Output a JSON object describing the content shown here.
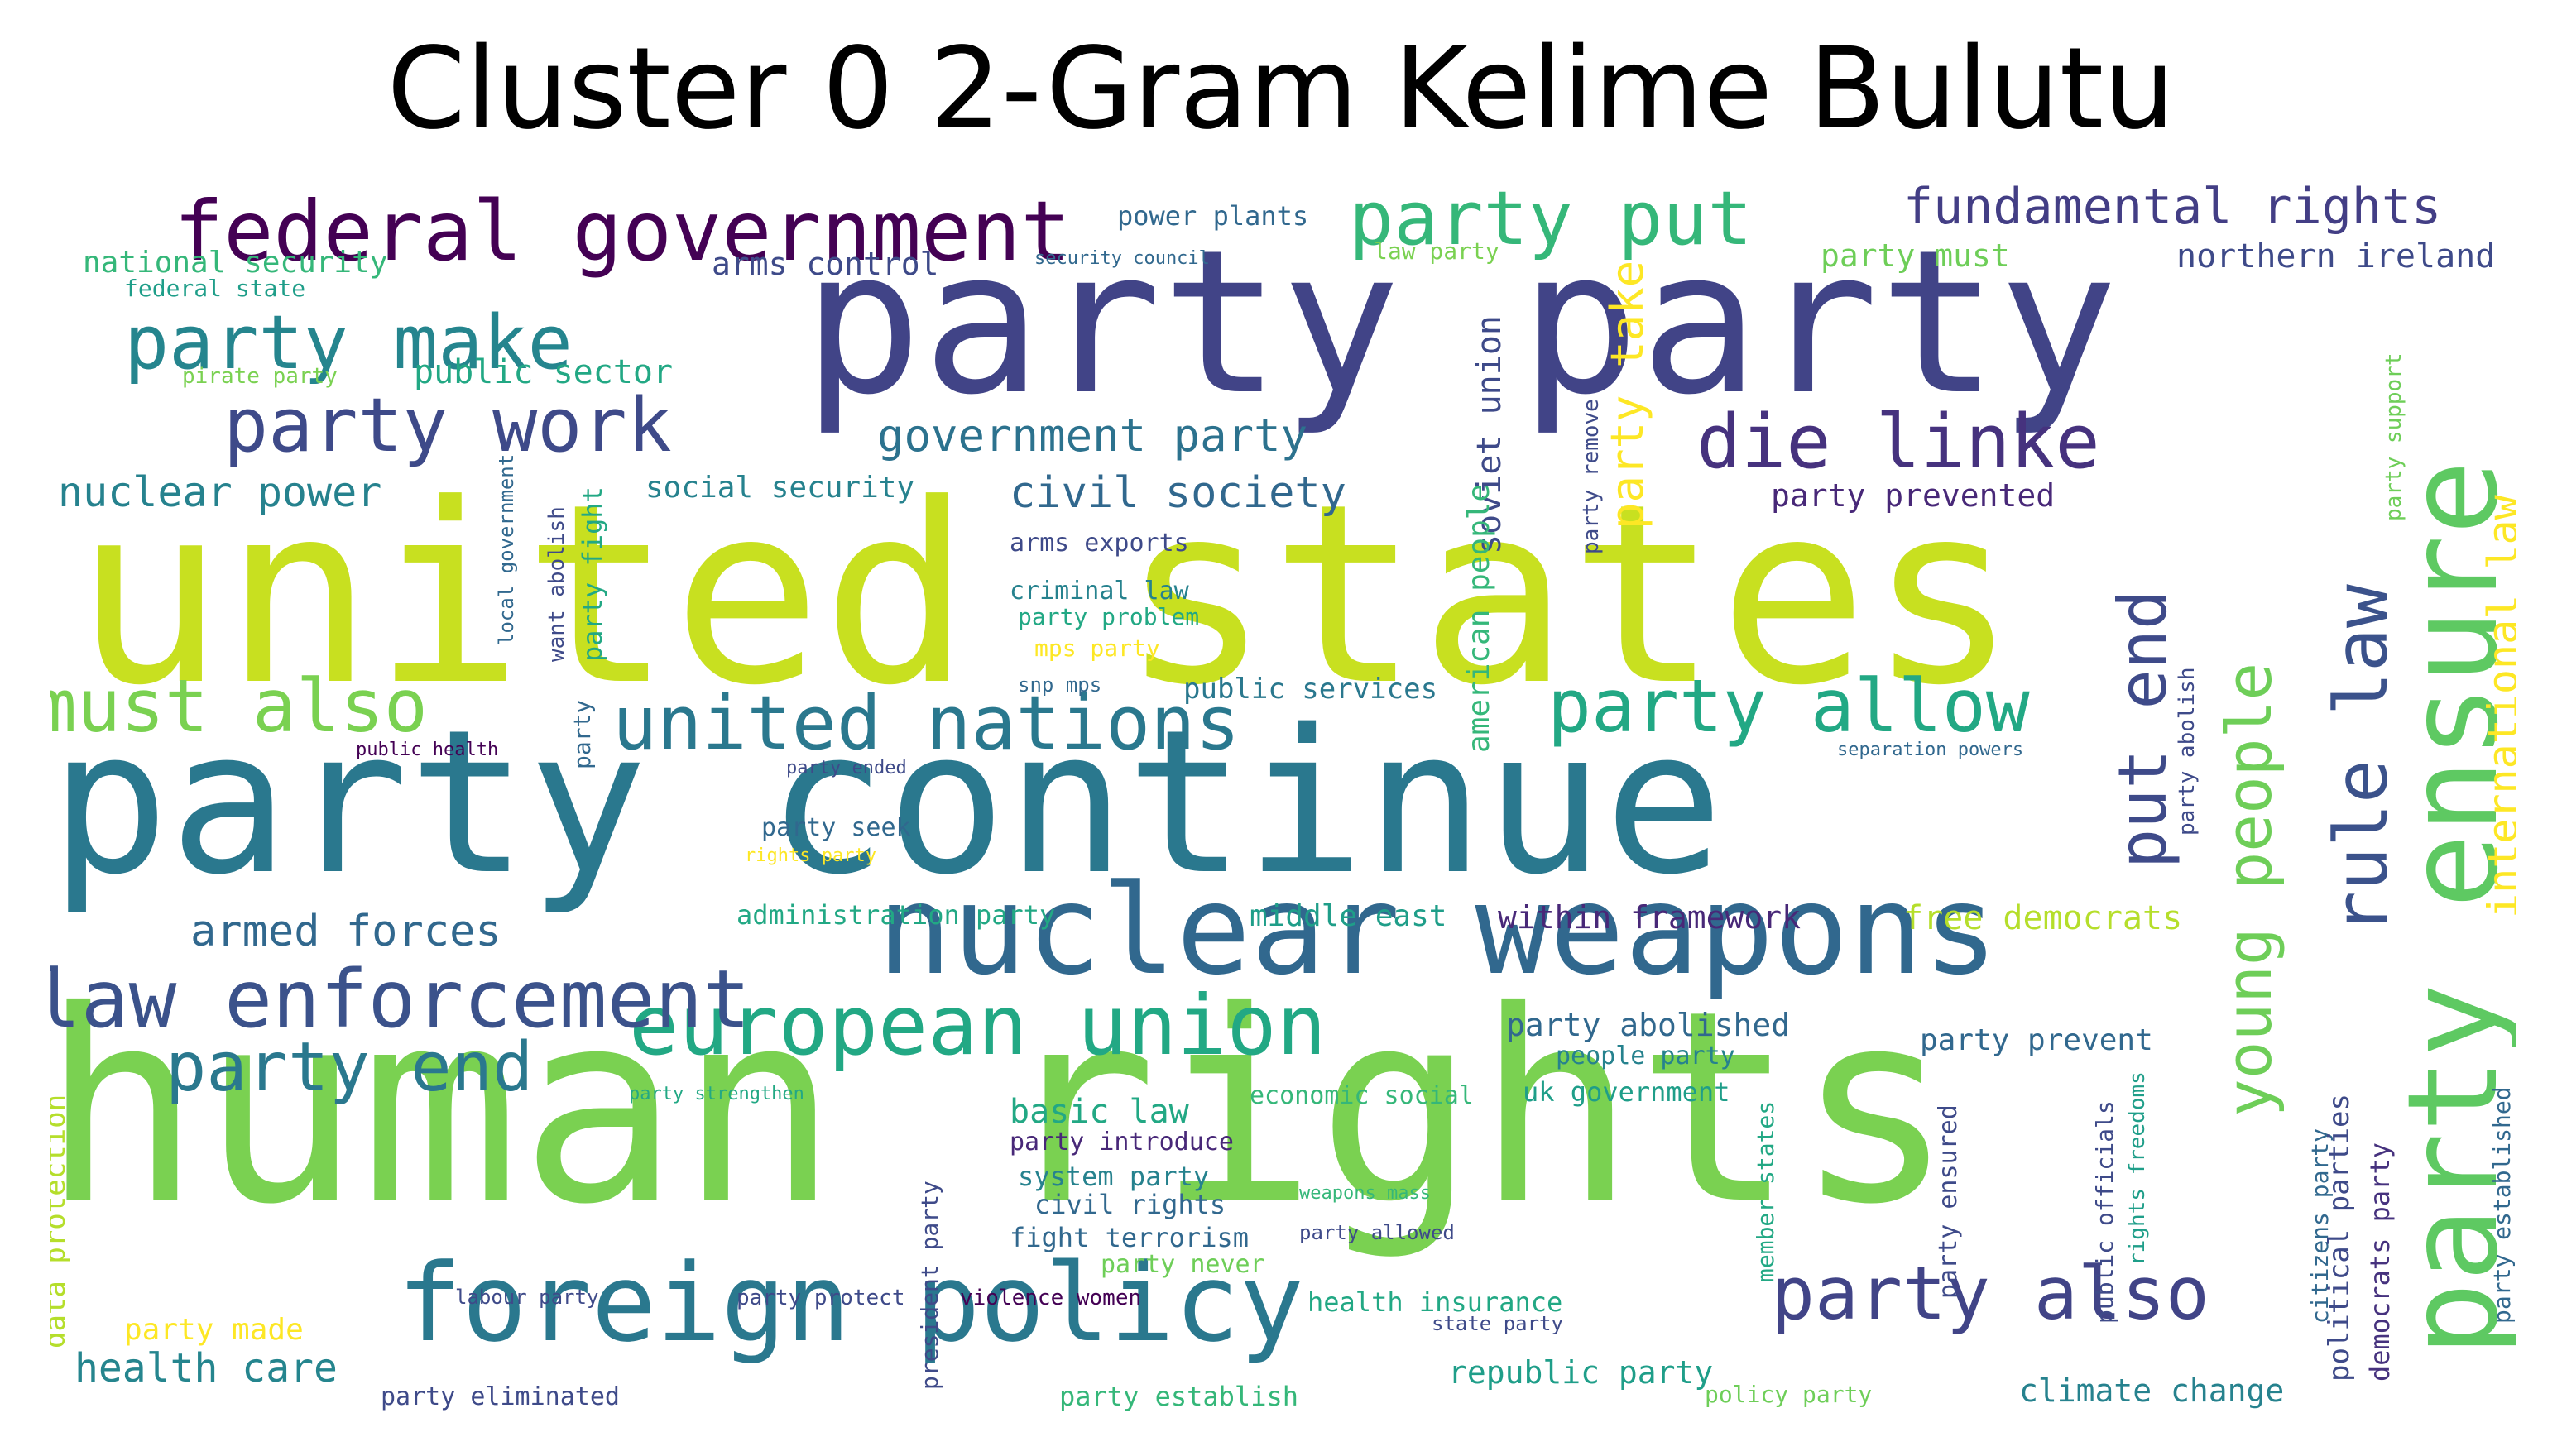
{
  "title": "Cluster 0 2-Gram Kelime Bulutu",
  "palette": {
    "dark_purple": "#440154",
    "indigo": "#3e4a89",
    "blue": "#31688e",
    "teal": "#26828e",
    "green_teal": "#1f9e89",
    "green": "#35b779",
    "light_green": "#6ece58",
    "lime": "#b5de2b",
    "yellow": "#fde725"
  },
  "words": [
    {
      "text": "united states",
      "color": "#c8e020",
      "rotated": false
    },
    {
      "text": "human rights",
      "color": "#7ad151",
      "rotated": false
    },
    {
      "text": "party continue",
      "color": "#2a788e",
      "rotated": false
    },
    {
      "text": "party party",
      "color": "#414487",
      "rotated": false
    },
    {
      "text": "nuclear weapons",
      "color": "#31688e",
      "rotated": false
    },
    {
      "text": "foreign policy",
      "color": "#2a788e",
      "rotated": false
    },
    {
      "text": "party ensure",
      "color": "#5ec962",
      "rotated": true
    },
    {
      "text": "federal government",
      "color": "#440154",
      "rotated": false
    },
    {
      "text": "european union",
      "color": "#22a884",
      "rotated": false
    },
    {
      "text": "law enforcement",
      "color": "#3b528b",
      "rotated": false
    },
    {
      "text": "united nations",
      "color": "#2a788e",
      "rotated": false
    },
    {
      "text": "party make",
      "color": "#25858e",
      "rotated": false
    },
    {
      "text": "party put",
      "color": "#35b779",
      "rotated": false
    },
    {
      "text": "die linke",
      "color": "#46327e",
      "rotated": false
    },
    {
      "text": "party work",
      "color": "#3e4a89",
      "rotated": false
    },
    {
      "text": "must also",
      "color": "#7ad151",
      "rotated": false
    },
    {
      "text": "party allow",
      "color": "#22a884",
      "rotated": false
    },
    {
      "text": "party also",
      "color": "#414487",
      "rotated": false
    },
    {
      "text": "rule law",
      "color": "#3b528b",
      "rotated": true
    },
    {
      "text": "put end",
      "color": "#3e4a89",
      "rotated": true
    },
    {
      "text": "young people",
      "color": "#6ece58",
      "rotated": true
    },
    {
      "text": "party end",
      "color": "#2a788e",
      "rotated": false
    },
    {
      "text": "fundamental rights",
      "color": "#433e85",
      "rotated": false
    },
    {
      "text": "government party",
      "color": "#2c728e",
      "rotated": false
    },
    {
      "text": "civil society",
      "color": "#31688e",
      "rotated": false
    },
    {
      "text": "nuclear power",
      "color": "#26828e",
      "rotated": false
    },
    {
      "text": "armed forces",
      "color": "#31688e",
      "rotated": false
    },
    {
      "text": "health care",
      "color": "#25858e",
      "rotated": false
    },
    {
      "text": "international law",
      "color": "#fde725",
      "rotated": true
    },
    {
      "text": "party take",
      "color": "#fde725",
      "rotated": true
    },
    {
      "text": "soviet union",
      "color": "#3e4a89",
      "rotated": true
    },
    {
      "text": "american people",
      "color": "#35b779",
      "rotated": true
    },
    {
      "text": "northern ireland",
      "color": "#3e4a89",
      "rotated": false
    },
    {
      "text": "party must",
      "color": "#6ece58",
      "rotated": false
    },
    {
      "text": "arms control",
      "color": "#3e4a89",
      "rotated": false
    },
    {
      "text": "power plants",
      "color": "#31688e",
      "rotated": false
    },
    {
      "text": "national security",
      "color": "#35b779",
      "rotated": false
    },
    {
      "text": "federal state",
      "color": "#1f9e89",
      "rotated": false
    },
    {
      "text": "public sector",
      "color": "#22a884",
      "rotated": false
    },
    {
      "text": "pirate party",
      "color": "#7ad151",
      "rotated": false
    },
    {
      "text": "social security",
      "color": "#26828e",
      "rotated": false
    },
    {
      "text": "party prevented",
      "color": "#482878",
      "rotated": false
    },
    {
      "text": "arms exports",
      "color": "#3e4a89",
      "rotated": false
    },
    {
      "text": "criminal law",
      "color": "#26828e",
      "rotated": false
    },
    {
      "text": "party problem",
      "color": "#22a884",
      "rotated": false
    },
    {
      "text": "mps party",
      "color": "#fde725",
      "rotated": false
    },
    {
      "text": "snp mps",
      "color": "#31688e",
      "rotated": false
    },
    {
      "text": "public services",
      "color": "#2a788e",
      "rotated": false
    },
    {
      "text": "public health",
      "color": "#440154",
      "rotated": false
    },
    {
      "text": "party ended",
      "color": "#3e4a89",
      "rotated": false
    },
    {
      "text": "party seek",
      "color": "#31688e",
      "rotated": false
    },
    {
      "text": "rights party",
      "color": "#fde725",
      "rotated": false
    },
    {
      "text": "administration party",
      "color": "#22a884",
      "rotated": false
    },
    {
      "text": "middle east",
      "color": "#1f9e89",
      "rotated": false
    },
    {
      "text": "within framework",
      "color": "#482878",
      "rotated": false
    },
    {
      "text": "free democrats",
      "color": "#b5de2b",
      "rotated": false
    },
    {
      "text": "party abolished",
      "color": "#31688e",
      "rotated": false
    },
    {
      "text": "people party",
      "color": "#26828e",
      "rotated": false
    },
    {
      "text": "party prevent",
      "color": "#31688e",
      "rotated": false
    },
    {
      "text": "uk government",
      "color": "#1f9e89",
      "rotated": false
    },
    {
      "text": "economic social",
      "color": "#35b779",
      "rotated": false
    },
    {
      "text": "basic law",
      "color": "#22a884",
      "rotated": false
    },
    {
      "text": "party introduce",
      "color": "#482878",
      "rotated": false
    },
    {
      "text": "system party",
      "color": "#26828e",
      "rotated": false
    },
    {
      "text": "civil rights",
      "color": "#31688e",
      "rotated": false
    },
    {
      "text": "fight terrorism",
      "color": "#31688e",
      "rotated": false
    },
    {
      "text": "party never",
      "color": "#6ece58",
      "rotated": false
    },
    {
      "text": "weapons mass",
      "color": "#35b779",
      "rotated": false
    },
    {
      "text": "party allowed",
      "color": "#3e4a89",
      "rotated": false
    },
    {
      "text": "health insurance",
      "color": "#22a884",
      "rotated": false
    },
    {
      "text": "state party",
      "color": "#3e4a89",
      "rotated": false
    },
    {
      "text": "republic party",
      "color": "#1f9e89",
      "rotated": false
    },
    {
      "text": "policy party",
      "color": "#6ece58",
      "rotated": false
    },
    {
      "text": "climate change",
      "color": "#26828e",
      "rotated": false
    },
    {
      "text": "party establish",
      "color": "#35b779",
      "rotated": false
    },
    {
      "text": "party eliminated",
      "color": "#3e4a89",
      "rotated": false
    },
    {
      "text": "party made",
      "color": "#fde725",
      "rotated": false
    },
    {
      "text": "labour party",
      "color": "#3e4a89",
      "rotated": false
    },
    {
      "text": "party protect",
      "color": "#3e4a89",
      "rotated": false
    },
    {
      "text": "violence women",
      "color": "#440154",
      "rotated": false
    },
    {
      "text": "party strengthen",
      "color": "#22a884",
      "rotated": false
    },
    {
      "text": "security council",
      "color": "#31688e",
      "rotated": false
    },
    {
      "text": "law party",
      "color": "#7ad151",
      "rotated": false
    },
    {
      "text": "separation powers",
      "color": "#31688e",
      "rotated": false
    },
    {
      "text": "data protection",
      "color": "#b5de2b",
      "rotated": true
    },
    {
      "text": "local government",
      "color": "#31688e",
      "rotated": true
    },
    {
      "text": "want abolish",
      "color": "#3e4a89",
      "rotated": true
    },
    {
      "text": "party fight",
      "color": "#22a884",
      "rotated": true
    },
    {
      "text": "party",
      "color": "#31688e",
      "rotated": true
    },
    {
      "text": "party remove",
      "color": "#3e4a89",
      "rotated": true
    },
    {
      "text": "president party",
      "color": "#3e4a89",
      "rotated": true
    },
    {
      "text": "member states",
      "color": "#22a884",
      "rotated": true
    },
    {
      "text": "party ensured",
      "color": "#3e4a89",
      "rotated": true
    },
    {
      "text": "public officials",
      "color": "#3e4a89",
      "rotated": true
    },
    {
      "text": "rights freedoms",
      "color": "#1f9e89",
      "rotated": true
    },
    {
      "text": "citizens party",
      "color": "#31688e",
      "rotated": true
    },
    {
      "text": "political parties",
      "color": "#3e4a89",
      "rotated": true
    },
    {
      "text": "democrats party",
      "color": "#46327e",
      "rotated": true
    },
    {
      "text": "party established",
      "color": "#31688e",
      "rotated": true
    },
    {
      "text": "party abolish",
      "color": "#3e4a89",
      "rotated": true
    },
    {
      "text": "party support",
      "color": "#6ece58",
      "rotated": true
    }
  ]
}
